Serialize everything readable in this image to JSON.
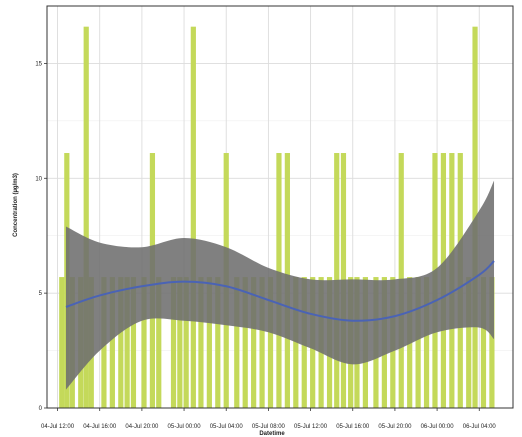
{
  "chart_data": {
    "type": "bar",
    "title": "",
    "xlabel": "Datetime",
    "ylabel": "Concentration (µg/m3)",
    "ylim": [
      0,
      17.5
    ],
    "xlim": [
      -0.25,
      10.8
    ],
    "grid": true,
    "yticks": [
      0,
      5,
      10,
      15
    ],
    "xticks": [
      {
        "pos": 0,
        "label": "04-Jul 12:00"
      },
      {
        "pos": 1,
        "label": "04-Jul 16:00"
      },
      {
        "pos": 2,
        "label": "04-Jul 20:00"
      },
      {
        "pos": 3,
        "label": "05-Jul 00:00"
      },
      {
        "pos": 4,
        "label": "05-Jul 04:00"
      },
      {
        "pos": 5,
        "label": "05-Jul 08:00"
      },
      {
        "pos": 6,
        "label": "05-Jul 12:00"
      },
      {
        "pos": 7,
        "label": "05-Jul 16:00"
      },
      {
        "pos": 8,
        "label": "05-Jul 20:00"
      },
      {
        "pos": 9,
        "label": "06-Jul 00:00"
      },
      {
        "pos": 10,
        "label": "06-Jul 04:00"
      }
    ],
    "bars": [
      {
        "x": 0.1,
        "y": 5.7
      },
      {
        "x": 0.22,
        "y": 11.1
      },
      {
        "x": 0.35,
        "y": 5.7
      },
      {
        "x": 0.55,
        "y": 5.7
      },
      {
        "x": 0.68,
        "y": 16.6
      },
      {
        "x": 0.8,
        "y": 5.7
      },
      {
        "x": 1.1,
        "y": 5.7
      },
      {
        "x": 1.3,
        "y": 5.7
      },
      {
        "x": 1.5,
        "y": 5.7
      },
      {
        "x": 1.65,
        "y": 5.7
      },
      {
        "x": 1.8,
        "y": 5.7
      },
      {
        "x": 2.05,
        "y": 5.7
      },
      {
        "x": 2.25,
        "y": 11.1
      },
      {
        "x": 2.4,
        "y": 5.7
      },
      {
        "x": 2.75,
        "y": 5.7
      },
      {
        "x": 2.9,
        "y": 5.7
      },
      {
        "x": 3.05,
        "y": 5.7
      },
      {
        "x": 3.22,
        "y": 16.6
      },
      {
        "x": 3.4,
        "y": 5.7
      },
      {
        "x": 3.6,
        "y": 5.7
      },
      {
        "x": 3.8,
        "y": 5.7
      },
      {
        "x": 4.0,
        "y": 11.1
      },
      {
        "x": 4.25,
        "y": 5.7
      },
      {
        "x": 4.45,
        "y": 5.7
      },
      {
        "x": 4.65,
        "y": 5.7
      },
      {
        "x": 4.85,
        "y": 5.7
      },
      {
        "x": 5.05,
        "y": 5.7
      },
      {
        "x": 5.25,
        "y": 11.1
      },
      {
        "x": 5.45,
        "y": 11.1
      },
      {
        "x": 5.65,
        "y": 5.7
      },
      {
        "x": 5.85,
        "y": 5.7
      },
      {
        "x": 6.05,
        "y": 5.7
      },
      {
        "x": 6.25,
        "y": 5.7
      },
      {
        "x": 6.45,
        "y": 5.7
      },
      {
        "x": 6.62,
        "y": 11.1
      },
      {
        "x": 6.78,
        "y": 11.1
      },
      {
        "x": 6.95,
        "y": 5.7
      },
      {
        "x": 7.1,
        "y": 5.7
      },
      {
        "x": 7.3,
        "y": 5.7
      },
      {
        "x": 7.55,
        "y": 5.7
      },
      {
        "x": 7.75,
        "y": 5.7
      },
      {
        "x": 7.95,
        "y": 5.7
      },
      {
        "x": 8.15,
        "y": 11.1
      },
      {
        "x": 8.35,
        "y": 5.7
      },
      {
        "x": 8.55,
        "y": 5.7
      },
      {
        "x": 8.75,
        "y": 5.7
      },
      {
        "x": 8.95,
        "y": 11.1
      },
      {
        "x": 9.15,
        "y": 11.1
      },
      {
        "x": 9.35,
        "y": 11.1
      },
      {
        "x": 9.55,
        "y": 11.1
      },
      {
        "x": 9.75,
        "y": 5.7
      },
      {
        "x": 9.9,
        "y": 16.6
      },
      {
        "x": 10.1,
        "y": 5.7
      },
      {
        "x": 10.3,
        "y": 5.7
      }
    ],
    "bar_color": "#c4d95a",
    "smooth_line": {
      "color": "#4a63b5",
      "x": [
        0.2,
        1.0,
        2.0,
        3.0,
        4.0,
        5.0,
        6.0,
        7.0,
        8.0,
        9.0,
        10.0,
        10.35
      ],
      "y": [
        4.4,
        4.9,
        5.3,
        5.5,
        5.3,
        4.7,
        4.1,
        3.8,
        4.0,
        4.7,
        5.8,
        6.4
      ],
      "ci_lower": [
        0.8,
        2.5,
        3.8,
        3.8,
        3.6,
        3.3,
        2.6,
        1.9,
        2.5,
        3.3,
        3.5,
        3.0
      ],
      "ci_upper": [
        7.9,
        7.2,
        7.0,
        7.4,
        7.0,
        6.1,
        5.6,
        5.6,
        5.6,
        6.1,
        8.6,
        9.9
      ],
      "ci_color": "#6e6e6e"
    }
  }
}
